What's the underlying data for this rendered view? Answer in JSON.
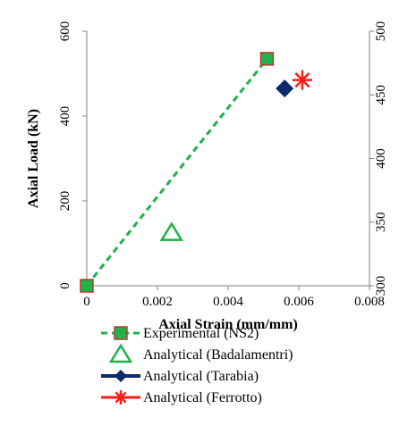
{
  "chart_data": {
    "type": "scatter",
    "xlabel": "Axial Strain (mm/mm)",
    "ylabel": "Axial Load (kN)",
    "xlim": [
      0,
      0.008
    ],
    "ylim_left": [
      0,
      600
    ],
    "ylim_right": [
      300,
      500
    ],
    "x_ticks": [
      "0",
      "0.002",
      "0.004",
      "0.006",
      "0.008"
    ],
    "y_ticks_left": [
      "0",
      "200",
      "400",
      "600"
    ],
    "y_ticks_right": [
      "300",
      "350",
      "400",
      "450",
      "500"
    ],
    "grid": false,
    "legend_position": "bottom",
    "series": [
      {
        "name": "Experimental (NS2)",
        "style": "dashed-line-square",
        "color": "#1fb14a",
        "axis": "left",
        "points": [
          [
            0,
            0
          ],
          [
            0.0051,
            535
          ]
        ]
      },
      {
        "name": "Analytical (Badalamentri)",
        "style": "triangle-open",
        "color": "#1fb14a",
        "axis": "left",
        "points": [
          [
            0.0024,
            125
          ]
        ]
      },
      {
        "name": "Analytical (Tarabia)",
        "style": "line-diamond",
        "color": "#0d2a6b",
        "axis": "left",
        "points": [
          [
            0.0056,
            465
          ]
        ]
      },
      {
        "name": "Analytical (Ferrotto)",
        "style": "line-star",
        "color": "#ff1a1a",
        "axis": "left",
        "points": [
          [
            0.0061,
            485
          ]
        ]
      }
    ]
  }
}
